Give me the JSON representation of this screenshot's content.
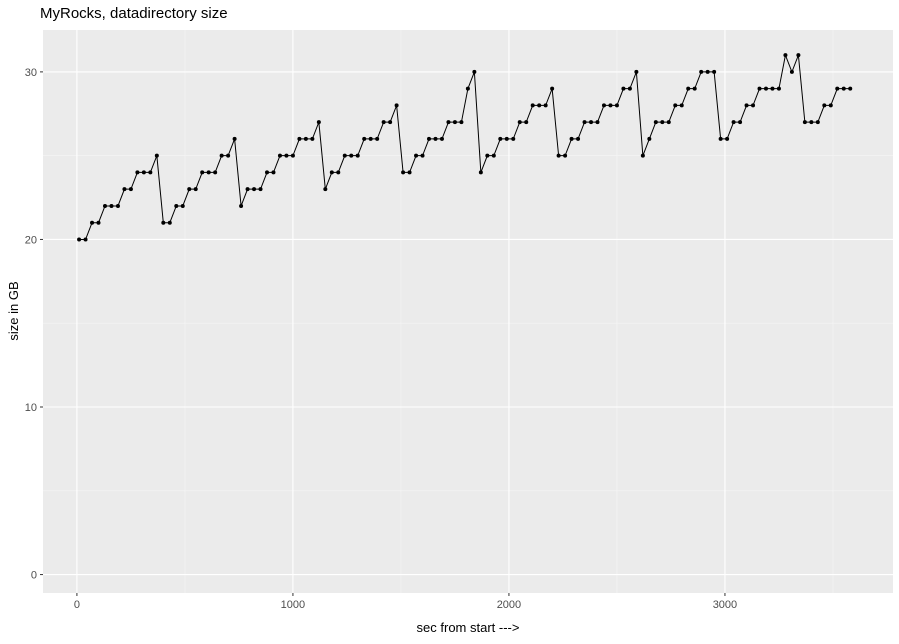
{
  "chart_data": {
    "type": "line",
    "title": "MyRocks, datadirectory size",
    "x_label": "sec from start --->",
    "y_label": "size in GB",
    "x": [
      10,
      40,
      70,
      100,
      130,
      160,
      190,
      220,
      250,
      280,
      310,
      340,
      370,
      400,
      430,
      460,
      490,
      520,
      550,
      580,
      610,
      640,
      670,
      700,
      730,
      760,
      790,
      820,
      850,
      880,
      910,
      940,
      970,
      1000,
      1030,
      1060,
      1090,
      1120,
      1150,
      1180,
      1210,
      1240,
      1270,
      1300,
      1330,
      1360,
      1390,
      1420,
      1450,
      1480,
      1510,
      1540,
      1570,
      1600,
      1630,
      1660,
      1690,
      1720,
      1750,
      1780,
      1810,
      1840,
      1870,
      1900,
      1930,
      1960,
      1990,
      2020,
      2050,
      2080,
      2110,
      2140,
      2170,
      2200,
      2230,
      2260,
      2290,
      2320,
      2350,
      2380,
      2410,
      2440,
      2470,
      2500,
      2530,
      2560,
      2590,
      2620,
      2650,
      2680,
      2710,
      2740,
      2770,
      2800,
      2830,
      2860,
      2890,
      2920,
      2950,
      2980,
      3010,
      3040,
      3070,
      3100,
      3130,
      3160,
      3190,
      3220,
      3250,
      3280,
      3310,
      3340,
      3370,
      3400,
      3430,
      3460,
      3490,
      3520,
      3550,
      3580
    ],
    "values": [
      20,
      20,
      21,
      21,
      22,
      22,
      22,
      23,
      23,
      24,
      24,
      24,
      25,
      21,
      21,
      22,
      22,
      23,
      23,
      24,
      24,
      24,
      25,
      25,
      26,
      22,
      23,
      23,
      23,
      24,
      24,
      25,
      25,
      25,
      26,
      26,
      26,
      27,
      23,
      24,
      24,
      25,
      25,
      25,
      26,
      26,
      26,
      27,
      27,
      28,
      24,
      24,
      25,
      25,
      26,
      26,
      26,
      27,
      27,
      27,
      29,
      30,
      24,
      25,
      25,
      26,
      26,
      26,
      27,
      27,
      28,
      28,
      28,
      29,
      25,
      25,
      26,
      26,
      27,
      27,
      27,
      28,
      28,
      28,
      29,
      29,
      30,
      25,
      26,
      27,
      27,
      27,
      28,
      28,
      29,
      29,
      30,
      30,
      30,
      26,
      26,
      27,
      27,
      28,
      28,
      29,
      29,
      29,
      29,
      31,
      30,
      31,
      27,
      27,
      27,
      28,
      28,
      29,
      29,
      29
    ],
    "color": "#000000",
    "xlim": [
      -157,
      3778
    ],
    "ylim": [
      -1.1,
      32.5
    ],
    "xticks": [
      0,
      1000,
      2000,
      3000
    ],
    "yticks": [
      0,
      10,
      20,
      30
    ],
    "minor_xticks": [
      500,
      1500,
      2500,
      3500
    ],
    "minor_yticks": [
      5,
      15,
      25
    ],
    "grid": true
  }
}
